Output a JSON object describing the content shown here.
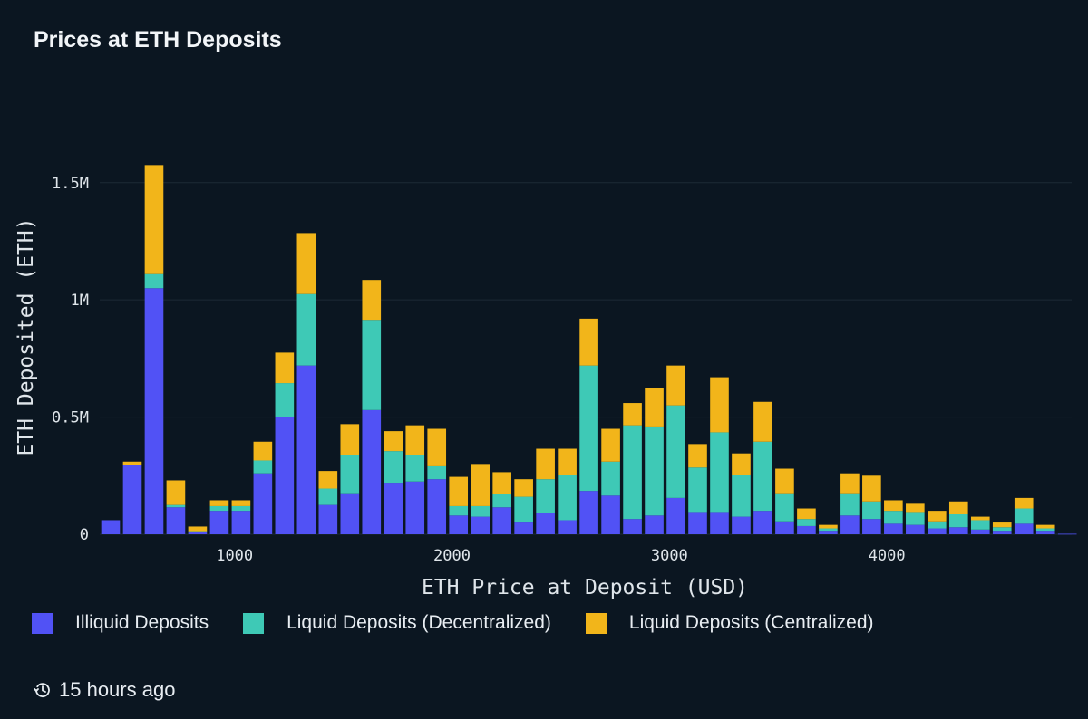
{
  "chart_data": {
    "type": "bar",
    "stacked": true,
    "title": "Prices at ETH Deposits",
    "xlabel": "ETH Price at Deposit (USD)",
    "ylabel": "ETH Deposited (ETH)",
    "x_ticks": [
      {
        "value": 1000,
        "label": "1000"
      },
      {
        "value": 2000,
        "label": "2000"
      },
      {
        "value": 3000,
        "label": "3000"
      },
      {
        "value": 4000,
        "label": "4000"
      }
    ],
    "y_ticks": [
      {
        "value": 0,
        "label": "0"
      },
      {
        "value": 500000,
        "label": "0.5M"
      },
      {
        "value": 1000000,
        "label": "1M"
      },
      {
        "value": 1500000,
        "label": "1.5M"
      }
    ],
    "ylim": [
      0,
      1700000
    ],
    "xlim": [
      380,
      4850
    ],
    "bin_width": 100,
    "grid": true,
    "legend_position": "bottom",
    "x": [
      430,
      530,
      630,
      730,
      830,
      930,
      1030,
      1130,
      1230,
      1330,
      1430,
      1530,
      1630,
      1730,
      1830,
      1930,
      2030,
      2130,
      2230,
      2330,
      2430,
      2530,
      2630,
      2730,
      2830,
      2930,
      3030,
      3130,
      3230,
      3330,
      3430,
      3530,
      3630,
      3730,
      3830,
      3930,
      4030,
      4130,
      4230,
      4330,
      4430,
      4530,
      4630,
      4730,
      4830
    ],
    "series": [
      {
        "name": "Illiquid Deposits",
        "color": "#5152f5",
        "values": [
          60000,
          295000,
          1050000,
          115000,
          8000,
          100000,
          100000,
          260000,
          500000,
          720000,
          125000,
          175000,
          530000,
          220000,
          225000,
          235000,
          80000,
          75000,
          115000,
          50000,
          90000,
          60000,
          185000,
          165000,
          65000,
          80000,
          155000,
          95000,
          95000,
          75000,
          100000,
          55000,
          35000,
          15000,
          80000,
          65000,
          45000,
          40000,
          25000,
          30000,
          20000,
          15000,
          45000,
          15000,
          2000
        ]
      },
      {
        "name": "Liquid Deposits (Decentralized)",
        "color": "#3ec9b6",
        "values": [
          0,
          0,
          60000,
          10000,
          5000,
          20000,
          20000,
          55000,
          145000,
          305000,
          70000,
          165000,
          385000,
          135000,
          115000,
          55000,
          40000,
          45000,
          55000,
          110000,
          145000,
          195000,
          535000,
          145000,
          400000,
          380000,
          395000,
          190000,
          340000,
          180000,
          295000,
          120000,
          30000,
          10000,
          95000,
          75000,
          55000,
          55000,
          30000,
          55000,
          40000,
          15000,
          65000,
          10000,
          0
        ]
      },
      {
        "name": "Liquid Deposits (Centralized)",
        "color": "#f2b51a",
        "values": [
          0,
          15000,
          465000,
          105000,
          20000,
          25000,
          25000,
          80000,
          130000,
          260000,
          75000,
          130000,
          170000,
          85000,
          125000,
          160000,
          125000,
          180000,
          95000,
          75000,
          130000,
          110000,
          200000,
          140000,
          95000,
          165000,
          170000,
          100000,
          235000,
          90000,
          170000,
          105000,
          45000,
          15000,
          85000,
          110000,
          45000,
          35000,
          45000,
          55000,
          15000,
          20000,
          45000,
          15000,
          0
        ]
      }
    ]
  },
  "footer": {
    "icon": "history-clock-icon",
    "timestamp": "15 hours ago"
  }
}
